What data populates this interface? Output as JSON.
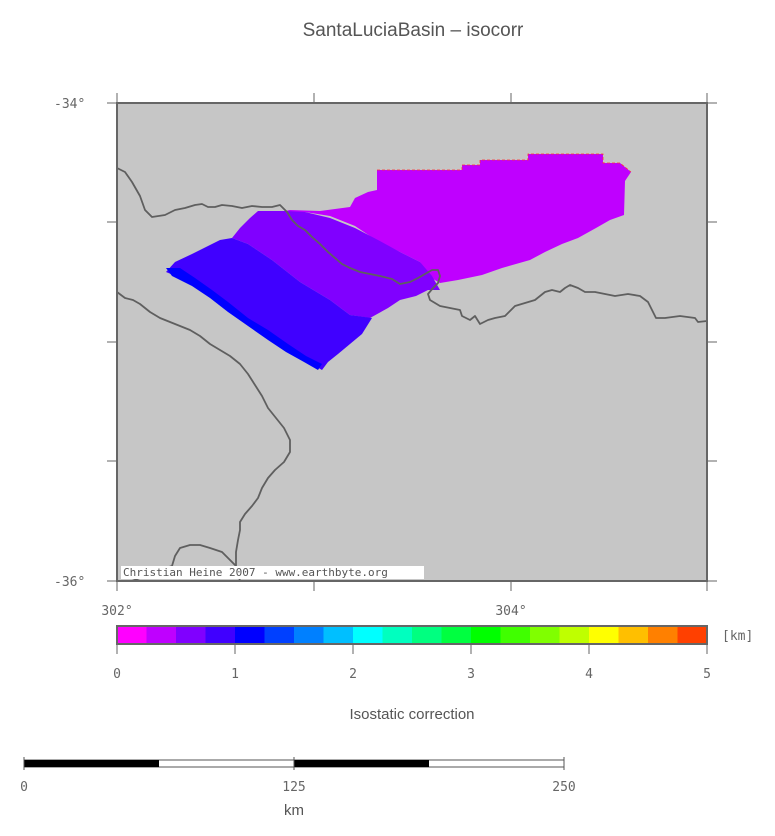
{
  "title": "SantaLuciaBasin – isocorr",
  "map": {
    "lat_labels": [
      "-34°",
      "-36°"
    ],
    "lon_labels": [
      "302°",
      "304°"
    ],
    "credit": "Christian Heine 2007 - www.earthbyte.org",
    "background_color": "#c6c6c6",
    "coast_color": "#5f5f5f"
  },
  "colorbar": {
    "unit": "[km]",
    "ticks": [
      "0",
      "1",
      "2",
      "3",
      "4",
      "5"
    ],
    "range": [
      0,
      5
    ],
    "label": "Isostatic correction",
    "colors": [
      "#ff00ff",
      "#bf00ff",
      "#8000ff",
      "#4000ff",
      "#0000ff",
      "#0040ff",
      "#0080ff",
      "#00bfff",
      "#00ffff",
      "#00ffbf",
      "#00ff80",
      "#00ff40",
      "#00ff00",
      "#40ff00",
      "#80ff00",
      "#bfff00",
      "#ffff00",
      "#ffbf00",
      "#ff8000",
      "#ff4000"
    ]
  },
  "scalebar": {
    "ticks": [
      "0",
      "125",
      "250"
    ],
    "unit": "km"
  }
}
